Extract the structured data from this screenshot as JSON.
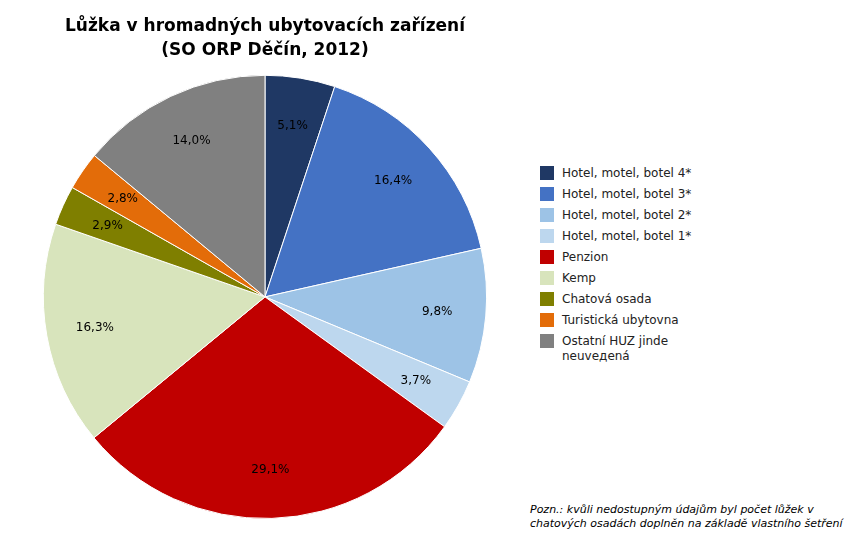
{
  "chart_data": {
    "type": "pie",
    "title": "Lůžka v hromadných ubytovacích zařízení",
    "subtitle": "(SO ORP Děčín, 2012)",
    "categories": [
      "Hotel, motel, botel 4*",
      "Hotel, motel, botel 3*",
      "Hotel, motel, botel 2*",
      "Hotel, motel, botel 1*",
      "Penzion",
      "Kemp",
      "Chatová osada",
      "Turistická ubytovna",
      "Ostatní HUZ jinde\nneuveдená"
    ],
    "values": [
      5.1,
      16.4,
      9.8,
      3.7,
      29.1,
      16.3,
      2.9,
      2.8,
      14.0
    ],
    "value_labels": [
      "5,1%",
      "16,4%",
      "9,8%",
      "3,7%",
      "29,1%",
      "16,3%",
      "2,9%",
      "2,8%",
      "14,0%"
    ],
    "colors": [
      "#1F3864",
      "#4472C4",
      "#9DC3E6",
      "#BDD7EE",
      "#C00000",
      "#D8E4BC",
      "#7F7F00",
      "#E36C09",
      "#808080"
    ],
    "data_labels": true,
    "legend": "right",
    "annotations": [
      "Pozn.: kvůli nedostupným údajům byl počet lůžek v\nchatových osadách doplněn na základě vlastního šetření"
    ]
  }
}
